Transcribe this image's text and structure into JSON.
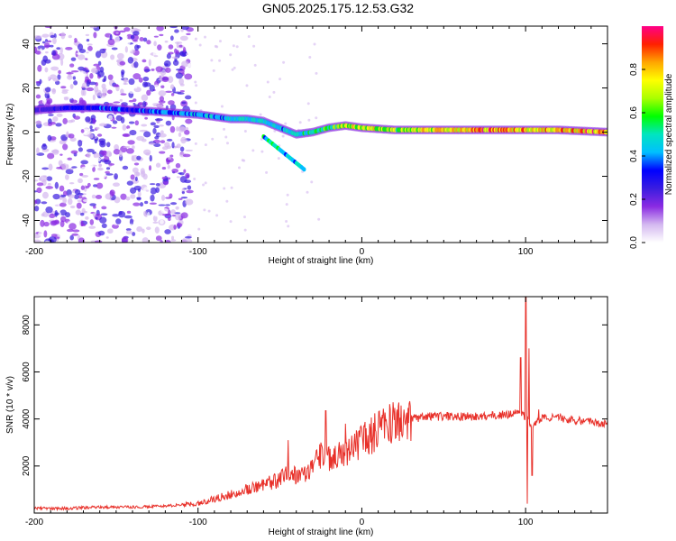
{
  "title": "GN05.2025.175.12.53.G32",
  "colors": {
    "snr_line": "#e8312a",
    "frame": "#000000",
    "colormap": [
      "#ffffff",
      "#d4b8f0",
      "#8a2be2",
      "#3a1de0",
      "#0000ff",
      "#00bfff",
      "#00e5c0",
      "#00ff00",
      "#aaff00",
      "#ffff00",
      "#ffa500",
      "#ff2000",
      "#ff0088"
    ]
  },
  "chart_data": [
    {
      "type": "heatmap",
      "title": "GN05.2025.175.12.53.G32",
      "xlabel": "Height of straight line (km)",
      "ylabel": "Frequency (Hz)",
      "xlim": [
        -200,
        150
      ],
      "ylim": [
        -50,
        48
      ],
      "x_ticks": [
        -200,
        -100,
        0,
        100
      ],
      "x_tick_labels": [
        "-200",
        "-100",
        "0",
        "100"
      ],
      "y_ticks": [
        -40,
        -20,
        0,
        20,
        40
      ],
      "y_tick_labels": [
        "-40",
        "-20",
        "0",
        "20",
        "40"
      ],
      "grid": false,
      "colorbar": {
        "label": "Normalized spectral amplitude",
        "range": [
          0,
          1
        ],
        "ticks": [
          0.0,
          0.2,
          0.4,
          0.6,
          0.8
        ],
        "tick_labels": [
          "0.0",
          "0.2",
          "0.4",
          "0.6",
          "0.8"
        ]
      },
      "ridge": {
        "x": [
          -200,
          -180,
          -160,
          -140,
          -120,
          -100,
          -90,
          -80,
          -70,
          -60,
          -50,
          -40,
          -30,
          -20,
          -10,
          0,
          20,
          50,
          80,
          100,
          120,
          150
        ],
        "frequency": [
          10,
          11,
          11,
          10,
          9,
          8,
          7,
          6,
          6,
          5,
          2,
          -1,
          0,
          2,
          3,
          2,
          1,
          1,
          1,
          1,
          1,
          0
        ],
        "amplitude": [
          0.25,
          0.3,
          0.35,
          0.35,
          0.4,
          0.45,
          0.45,
          0.45,
          0.5,
          0.5,
          0.45,
          0.5,
          0.55,
          0.6,
          0.7,
          0.75,
          0.7,
          0.8,
          0.9,
          0.85,
          0.85,
          0.9
        ]
      }
    },
    {
      "type": "line",
      "xlabel": "Height of straight line (km)",
      "ylabel": "SNR (10 * v/v)",
      "xlim": [
        -200,
        150
      ],
      "ylim": [
        0,
        9200
      ],
      "x_ticks": [
        -200,
        -100,
        0,
        100
      ],
      "x_tick_labels": [
        "-200",
        "-100",
        "0",
        "100"
      ],
      "y_ticks": [
        2000,
        4000,
        6000,
        8000
      ],
      "y_tick_labels": [
        "2000",
        "4000",
        "6000",
        "8000"
      ],
      "grid": false,
      "series": [
        {
          "x": [
            -200,
            -180,
            -160,
            -140,
            -120,
            -110,
            -100,
            -90,
            -80,
            -70,
            -60,
            -50,
            -45,
            -40,
            -35,
            -30,
            -25,
            -20,
            -15,
            -10,
            -5,
            0,
            10,
            20,
            30,
            40,
            50,
            60,
            70,
            80,
            90,
            95,
            100,
            103,
            105,
            110,
            120,
            130,
            140,
            150
          ],
          "y": [
            200,
            200,
            250,
            250,
            300,
            350,
            400,
            600,
            800,
            1000,
            1200,
            1400,
            1800,
            1600,
            1700,
            2000,
            2500,
            2300,
            2500,
            2600,
            2800,
            3000,
            3500,
            3900,
            4000,
            4100,
            4100,
            4100,
            4100,
            4150,
            4200,
            4300,
            4100,
            3800,
            3800,
            4100,
            4050,
            3950,
            3850,
            3800
          ],
          "peaks": {
            "x": [
              -45,
              -22,
              -10,
              97,
              100,
              102,
              104,
              108
            ],
            "y": [
              3100,
              4350,
              3800,
              6600,
              9200,
              7000,
              6700,
              4400
            ]
          },
          "dips": {
            "x": [
              101,
              104
            ],
            "y": [
              400,
              1600
            ]
          }
        }
      ]
    }
  ]
}
